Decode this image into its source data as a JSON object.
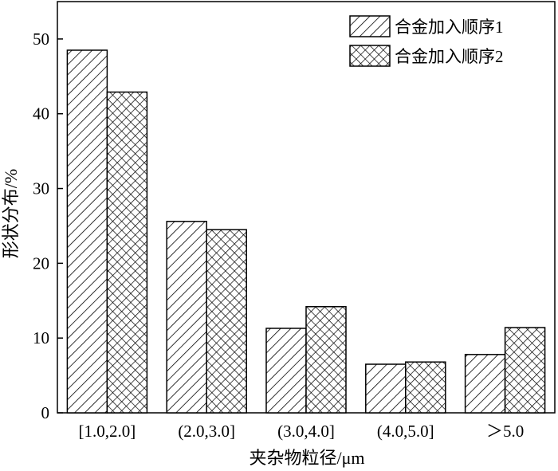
{
  "chart_data": {
    "type": "bar",
    "title": "",
    "xlabel": "夹杂物粒径/μm",
    "ylabel": "形状分布/%",
    "categories": [
      "[1.0,2.0]",
      "(2.0,3.0]",
      "(3.0,4.0]",
      "(4.0,5.0]",
      "＞5.0"
    ],
    "series": [
      {
        "name": "合金加入顺序1",
        "pattern": "diagonal-hatch",
        "values": [
          48.5,
          25.6,
          11.3,
          6.5,
          7.8
        ]
      },
      {
        "name": "合金加入顺序2",
        "pattern": "cross-hatch",
        "values": [
          42.9,
          24.5,
          14.2,
          6.8,
          11.4
        ]
      }
    ],
    "ylim": [
      0,
      55
    ],
    "yticks": [
      0,
      10,
      20,
      30,
      40,
      50
    ],
    "grid": false,
    "legend_position": "top-right",
    "colors": {
      "stroke": "#000000",
      "fill": "#ffffff"
    }
  }
}
